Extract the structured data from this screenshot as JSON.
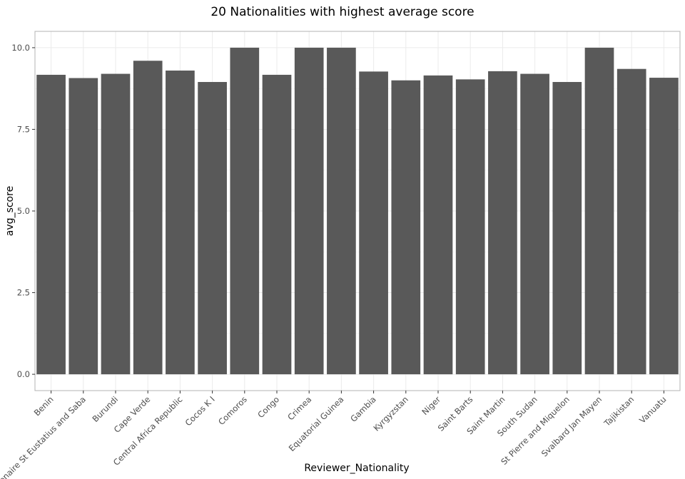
{
  "chart_data": {
    "type": "bar",
    "title": "20 Nationalities with highest average score",
    "xlabel": "Reviewer_Nationality",
    "ylabel": "avg_score",
    "categories": [
      "Benin",
      "Bonaire St Eustatius and Saba",
      "Burundi",
      "Cape Verde",
      "Central Africa Republic",
      "Cocos K I",
      "Comoros",
      "Congo",
      "Crimea",
      "Equatorial Guinea",
      "Gambia",
      "Kyrgyzstan",
      "Niger",
      "Saint Barts",
      "Saint Martin",
      "South Sudan",
      "St Pierre and Miquelon",
      "Svalbard Jan Mayen",
      "Tajikistan",
      "Vanuatu"
    ],
    "values": [
      9.17,
      9.07,
      9.2,
      9.6,
      9.3,
      8.95,
      10.0,
      9.17,
      10.0,
      10.0,
      9.27,
      9.0,
      9.15,
      9.03,
      9.28,
      9.2,
      8.95,
      10.0,
      9.35,
      9.08
    ],
    "ylim": [
      -0.5,
      10.5
    ],
    "yticks": [
      "0.0",
      "2.5",
      "5.0",
      "7.5",
      "10.0"
    ],
    "bar_color": "#595959",
    "grid": true,
    "legend": "none"
  }
}
